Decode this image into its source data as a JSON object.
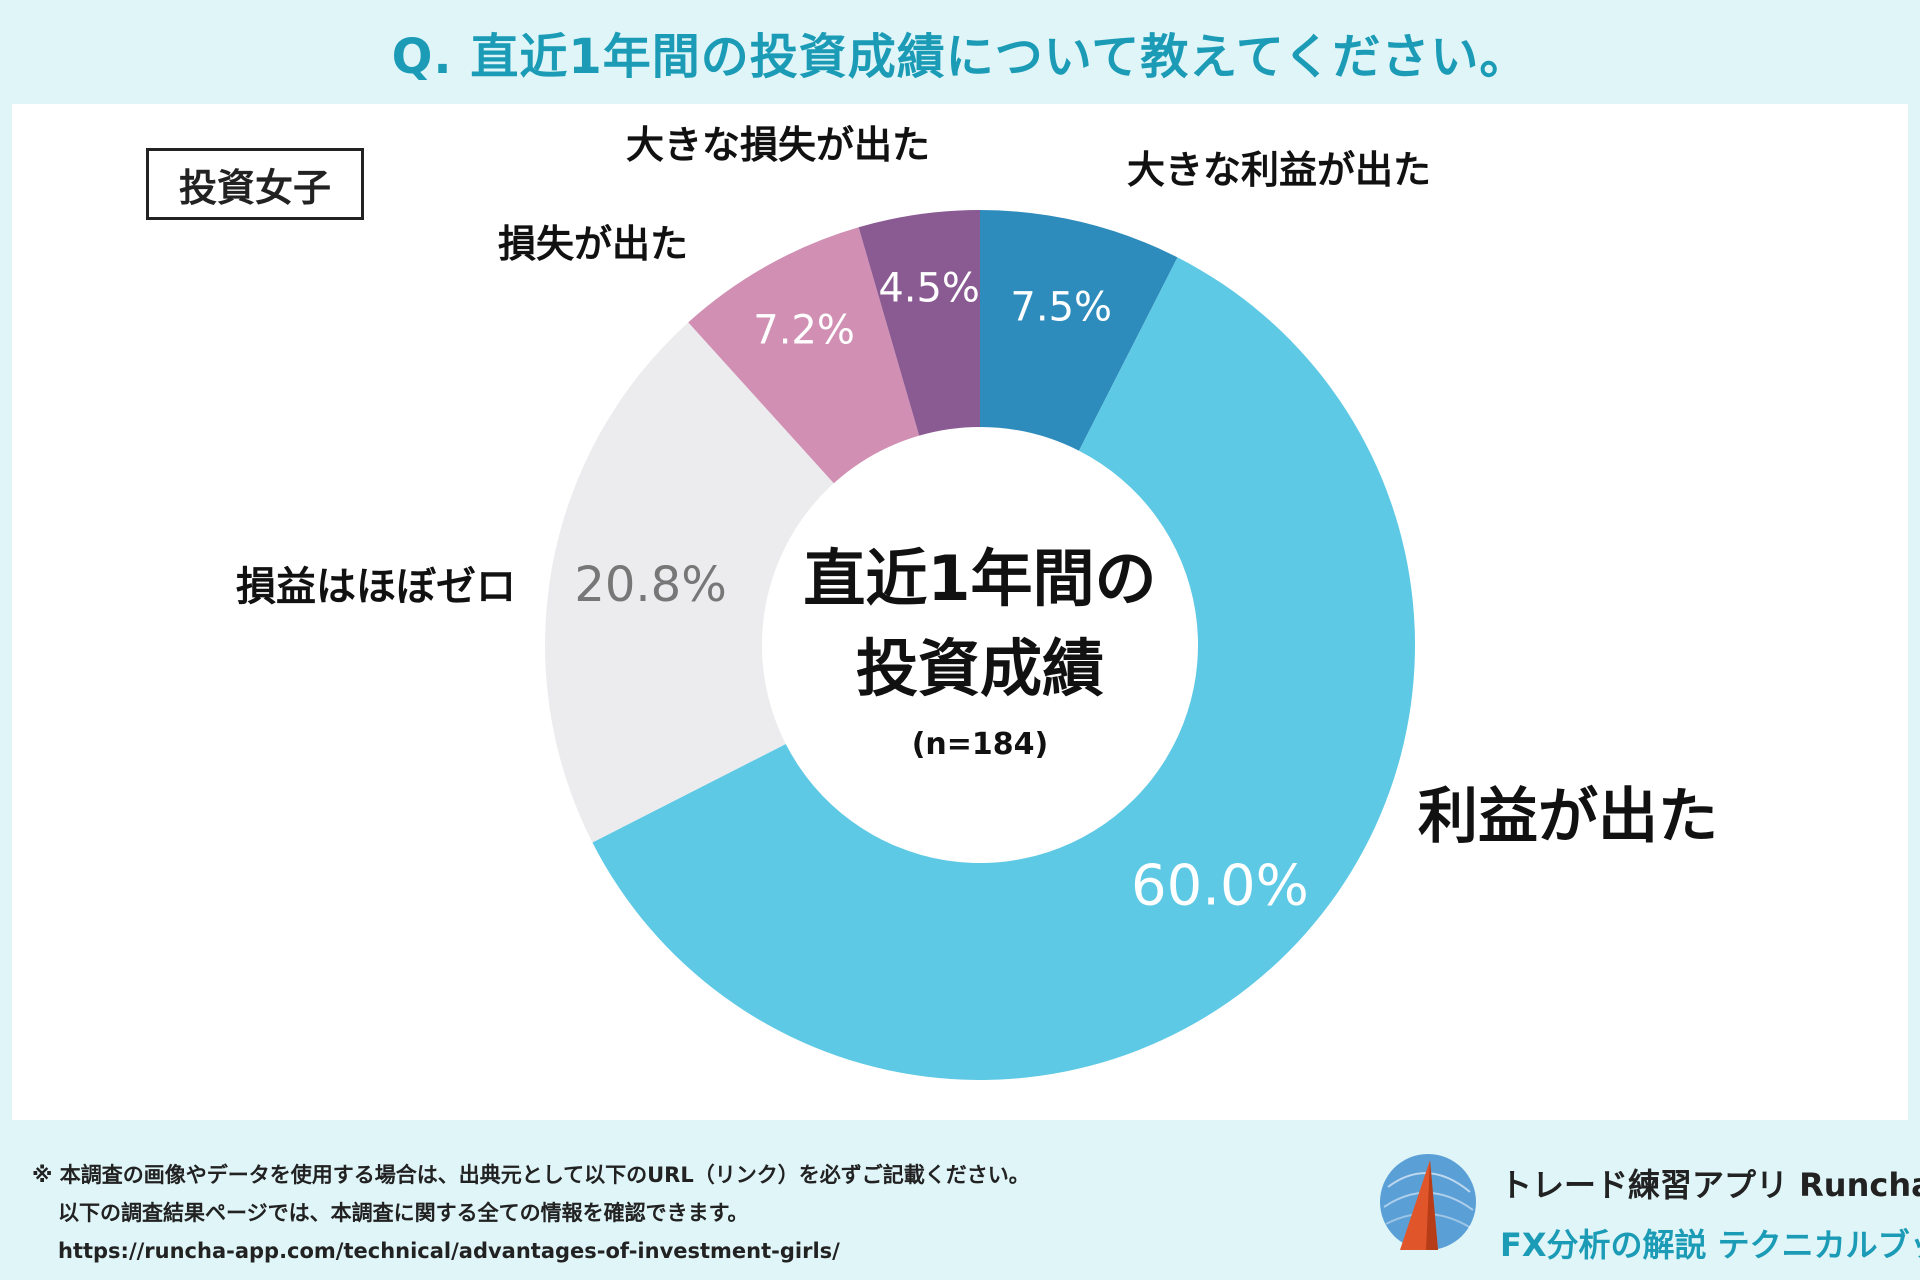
{
  "header": {
    "question": "Q. 直近1年間の投資成績について教えてください。"
  },
  "segment_tag": "投資女子",
  "chart_data": {
    "type": "pie",
    "variant": "donut",
    "center_label": {
      "line1": "直近1年間の",
      "line2": "投資成績",
      "sample": "(n=184)"
    },
    "slices": [
      {
        "label": "大きな利益が出た",
        "value": 7.5,
        "value_label": "7.5%",
        "color": "#2e8cbc",
        "value_color": "#ffffff"
      },
      {
        "label": "利益が出た",
        "value": 60.0,
        "value_label": "60.0%",
        "color": "#5ec9e5",
        "value_color": "#ffffff"
      },
      {
        "label": "損益はほぼゼロ",
        "value": 20.8,
        "value_label": "20.8%",
        "color": "#ececee",
        "value_color": "#777777"
      },
      {
        "label": "損失が出た",
        "value": 7.2,
        "value_label": "7.2%",
        "color": "#d08fb3",
        "value_color": "#ffffff"
      },
      {
        "label": "大きな損失が出た",
        "value": 4.5,
        "value_label": "4.5%",
        "color": "#8a5a92",
        "value_color": "#ffffff"
      }
    ]
  },
  "footer": {
    "note_line1": "※ 本調査の画像やデータを使用する場合は、出典元として以下のURL（リンク）を必ずご記載ください。",
    "note_line2": "以下の調査結果ページでは、本調査に関する全ての情報を確認できます。",
    "url": "https://runcha-app.com/technical/advantages-of-investment-girls/",
    "brand_line1": "トレード練習アプリ  Runcha",
    "brand_line2": "FX分析の解説  テクニカルブック"
  }
}
